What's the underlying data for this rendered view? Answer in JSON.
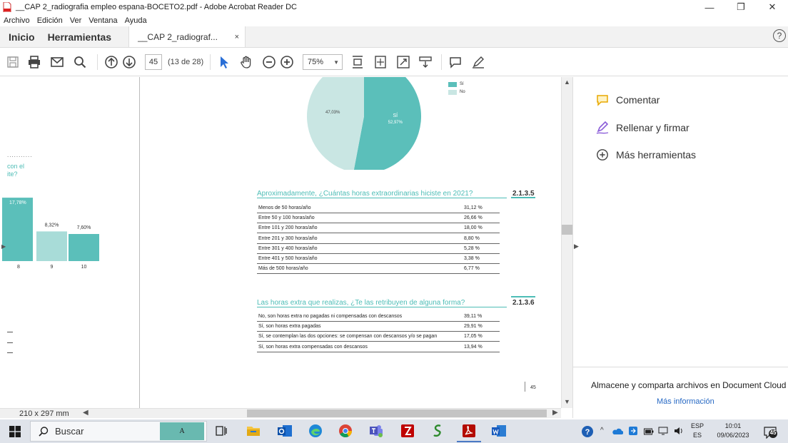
{
  "window": {
    "title": "__CAP 2_radiografia empleo espana-BOCETO2.pdf - Adobe Acrobat Reader DC",
    "controls": [
      "—",
      "❐",
      "✕"
    ]
  },
  "menu": [
    "Archivo",
    "Edición",
    "Ver",
    "Ventana",
    "Ayuda"
  ],
  "tabs": {
    "home": "Inicio",
    "tools": "Herramientas",
    "document": "__CAP 2_radiograf...",
    "close": "×",
    "help": "?"
  },
  "toolbar": {
    "page_number": "45",
    "page_count": "(13 de 28)",
    "zoom": "75%",
    "icons": [
      "save-icon",
      "print-icon",
      "mail-icon",
      "search-icon",
      "page-up-icon",
      "page-down-icon",
      "select-cursor-icon",
      "hand-icon",
      "zoom-out-icon",
      "zoom-in-icon",
      "fit-width-icon",
      "fit-page-icon",
      "fullscreen-icon",
      "scroll-mode-icon",
      "comment-icon",
      "sign-icon"
    ]
  },
  "right_panel": {
    "items": [
      "Comentar",
      "Rellenar y firmar",
      "Más herramientas"
    ],
    "cloud_text": "Almacene y comparta archivos en Document Cloud",
    "cloud_link": "Más información"
  },
  "statusbar": {
    "page_size": "210 x 297 mm"
  },
  "page": {
    "number": "45",
    "left_fragment": {
      "text_line1": "con el",
      "text_line2": "ite?",
      "dots": "..........."
    },
    "section1": {
      "title": "Aproximadamente, ¿Cuántas horas extraordinarias hiciste en 2021?",
      "code": "2.1.3.5",
      "rows": [
        {
          "label": "Menos de 50 horas/año",
          "value": "31,12 %"
        },
        {
          "label": "Entre 50 y 100 horas/año",
          "value": "26,66 %"
        },
        {
          "label": "Entre 101 y 200 horas/año",
          "value": "18,00 %"
        },
        {
          "label": "Entre 201 y 300 horas/año",
          "value": "8,80 %"
        },
        {
          "label": "Entre 301 y 400 horas/año",
          "value": "5,28 %"
        },
        {
          "label": "Entre 401 y 500 horas/año",
          "value": "3,38 %"
        },
        {
          "label": "Más de 500 horas/año",
          "value": "6,77 %"
        }
      ]
    },
    "section2": {
      "title": "Las horas extra que realizas, ¿Te las retribuyen de alguna forma?",
      "code": "2.1.3.6",
      "rows": [
        {
          "label": "No, son horas extra no pagadas ni compensadas con descansos",
          "value": "39,11 %"
        },
        {
          "label": "Sí, son horas extra pagadas",
          "value": "29,91 %"
        },
        {
          "label": "Sí, se contemplan las dos opciones: se compensan con descansos y/o se pagan",
          "value": "17,05 %"
        },
        {
          "label": "Sí, son horas extra compensadas con descansos",
          "value": "13,94 %"
        }
      ]
    }
  },
  "chart_data": [
    {
      "type": "pie",
      "categories": [
        "Sí",
        "No"
      ],
      "values": [
        52.97,
        47.03
      ],
      "data_labels": [
        "52,97%",
        "47,03%"
      ],
      "slice_label": "SÍ",
      "legend": [
        "Sí",
        "No"
      ],
      "legend_position": "top-right",
      "colors": [
        "#5bbfba",
        "#c9e6e3"
      ]
    },
    {
      "type": "bar",
      "categories": [
        "8",
        "9",
        "10"
      ],
      "values": [
        17.78,
        8.32,
        7.6
      ],
      "data_labels": [
        "17,78%",
        "8,32%",
        "7,60%"
      ],
      "colors": [
        "#5bbfba",
        "#a8dcd8",
        "#5bbfba"
      ]
    }
  ],
  "taskbar": {
    "search_placeholder": "Buscar",
    "apps": [
      "task-view-icon",
      "file-explorer-icon",
      "outlook-icon",
      "edge-icon",
      "chrome-icon",
      "teams-icon",
      "filezilla-icon",
      "greenshot-icon",
      "acrobat-icon",
      "word-icon"
    ],
    "lang_top": "ESP",
    "lang_bottom": "ES",
    "time": "10:01",
    "date": "09/06/2023",
    "notifications": "45"
  }
}
